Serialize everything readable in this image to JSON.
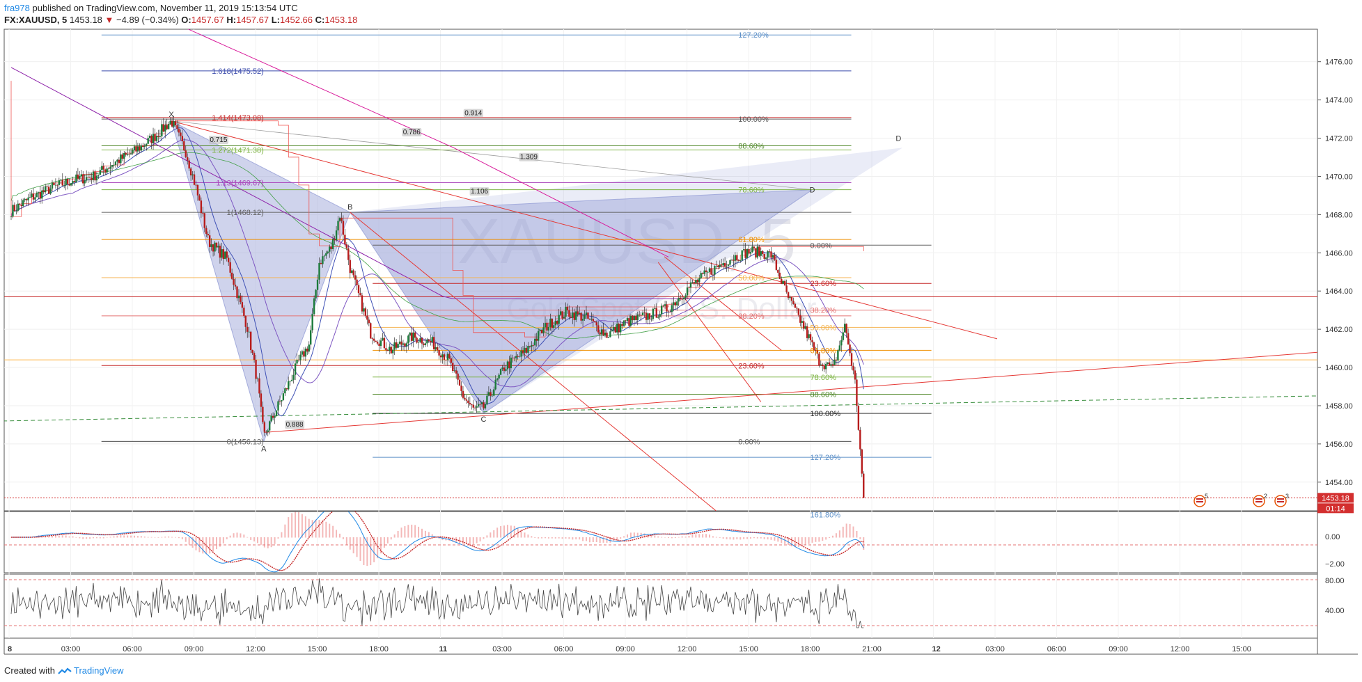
{
  "header": {
    "author": "fra978",
    "published": "published on TradingView.com, November 11, 2019 15:13:54 UTC",
    "symbol": "FX:XAUUSD, 5",
    "last": "1453.18",
    "change": "−4.89 (−0.34%)",
    "o_label": "O:",
    "o": "1457.67",
    "h_label": "H:",
    "h": "1457.67",
    "l_label": "L:",
    "l": "1452.66",
    "c_label": "C:",
    "c": "1453.18"
  },
  "footer": {
    "created_with": "Created with",
    "brand": "TradingView"
  },
  "watermark": {
    "symbol": "XAUUSD, 5",
    "sub": "Gold Spot / U.S. Dollar"
  },
  "colors": {
    "up": "#26a69a",
    "down": "#c62828",
    "price_line": "#d32f2f",
    "grid": "#eeeeee",
    "pattern_fill": "#9fa8da"
  },
  "chart_data": {
    "type": "line",
    "symbol": "XAUUSD",
    "interval": "5",
    "price_axis": {
      "ticks": [
        1454,
        1456,
        1458,
        1460,
        1462,
        1464,
        1466,
        1468,
        1470,
        1472,
        1474,
        1476
      ],
      "labels": [
        "1454.00",
        "1456.00",
        "1458.00",
        "1460.00",
        "1462.00",
        "1464.00",
        "1466.00",
        "1468.00",
        "1470.00",
        "1472.00",
        "1474.00",
        "1476.00"
      ],
      "range": [
        1452.5,
        1477.7
      ]
    },
    "time_axis": {
      "labels": [
        "8",
        "03:00",
        "06:00",
        "09:00",
        "12:00",
        "15:00",
        "18:00",
        "11",
        "03:00",
        "06:00",
        "09:00",
        "12:00",
        "15:00",
        "18:00",
        "21:00",
        "12",
        "03:00",
        "06:00",
        "09:00",
        "12:00",
        "15:00"
      ],
      "range_hours": [
        0,
        104
      ]
    },
    "last_price_label": "1453.18",
    "countdown": "01:14",
    "price_series": {
      "name": "",
      "hours": [
        0,
        1,
        2,
        3,
        4,
        5,
        6,
        7,
        7.8,
        8.5,
        9,
        9.6,
        10.5,
        11.5,
        12,
        12.3,
        13,
        14,
        14.5,
        15,
        15.6,
        16,
        16.5,
        17.5,
        18.5,
        19.5,
        20.5,
        21.3,
        22,
        22.5,
        23,
        24,
        25,
        26,
        27,
        28,
        29,
        30,
        31,
        32,
        33,
        34,
        35,
        36,
        37,
        37.8,
        38.6,
        39.3,
        40,
        40.6,
        41.1,
        41.5
      ],
      "close": [
        1468.2,
        1468.9,
        1469.4,
        1469.8,
        1470.0,
        1470.7,
        1471.3,
        1472.1,
        1472.9,
        1471.3,
        1469.4,
        1466.6,
        1465.7,
        1462.1,
        1459.2,
        1456.4,
        1458.0,
        1460.3,
        1461.2,
        1465.5,
        1466.3,
        1468.0,
        1465.2,
        1461.8,
        1460.9,
        1461.6,
        1461.3,
        1460.4,
        1458.5,
        1457.8,
        1457.9,
        1460.0,
        1460.8,
        1462.1,
        1462.9,
        1462.6,
        1461.7,
        1462.4,
        1462.7,
        1463.1,
        1464.2,
        1465.0,
        1465.7,
        1466.1,
        1465.9,
        1463.7,
        1462.1,
        1460.4,
        1459.9,
        1462.2,
        1459.1,
        1453.18
      ]
    },
    "macd_axis": {
      "labels": [
        "0.00",
        "−2.00"
      ]
    },
    "rsi_axis": {
      "labels": [
        "80.00",
        "40.00"
      ]
    },
    "harmonic_points": {
      "X": "X",
      "A": "A",
      "B": "B",
      "C": "C",
      "D": "D"
    },
    "ratio_labels": [
      "0.715",
      "0.786",
      "0.914",
      "1.309",
      "1.106",
      "0.888"
    ],
    "ext_levels": [
      {
        "label": "1.618(1475.52)",
        "price": 1475.52,
        "color": "#3949ab"
      },
      {
        "label": "1.414(1473.08)",
        "price": 1473.08,
        "color": "#c62828"
      },
      {
        "label": "1.272(1471.38)",
        "price": 1471.38,
        "color": "#7cb342"
      },
      {
        "label": "1.13(1469.67)",
        "price": 1469.67,
        "color": "#ab47bc"
      },
      {
        "label": "1(1468.12)",
        "price": 1468.12,
        "color": "#616161"
      },
      {
        "label": "0(1456.13)",
        "price": 1456.13,
        "color": "#616161"
      }
    ],
    "fib_xa": [
      {
        "label": "127.20%",
        "price": 1477.4,
        "color": "#5c8fc7"
      },
      {
        "label": "100.00%",
        "price": 1473.0,
        "color": "#616161"
      },
      {
        "label": "88.60%",
        "price": 1471.6,
        "color": "#558b2f"
      },
      {
        "label": "78.60%",
        "price": 1469.3,
        "color": "#7cb342"
      },
      {
        "label": "61.80%",
        "price": 1466.7,
        "color": "#ef8f00"
      },
      {
        "label": "50.00%",
        "price": 1464.7,
        "color": "#f4b350"
      },
      {
        "label": "38.20%",
        "price": 1462.7,
        "color": "#e57373"
      },
      {
        "label": "23.60%",
        "price": 1460.1,
        "color": "#c62828"
      },
      {
        "label": "0.00%",
        "price": 1456.13,
        "color": "#616161"
      }
    ],
    "fib_cd": [
      {
        "label": "0.00%",
        "price": 1466.4,
        "color": "#616161"
      },
      {
        "label": "23.60%",
        "price": 1464.4,
        "color": "#c62828"
      },
      {
        "label": "38.20%",
        "price": 1463.0,
        "color": "#e57373"
      },
      {
        "label": "50.00%",
        "price": 1462.1,
        "color": "#f4b350"
      },
      {
        "label": "61.80%",
        "price": 1460.9,
        "color": "#ef8f00"
      },
      {
        "label": "78.60%",
        "price": 1459.5,
        "color": "#7cb342"
      },
      {
        "label": "88.60%",
        "price": 1458.6,
        "color": "#558b2f"
      },
      {
        "label": "100.00%",
        "price": 1457.6,
        "color": "#212121"
      },
      {
        "label": "127.20%",
        "price": 1455.3,
        "color": "#5c8fc7"
      },
      {
        "label": "161.80%",
        "price": 1452.3,
        "color": "#5c8fc7"
      }
    ],
    "event_badges": [
      "5",
      "2",
      "3"
    ],
    "grid": true
  }
}
